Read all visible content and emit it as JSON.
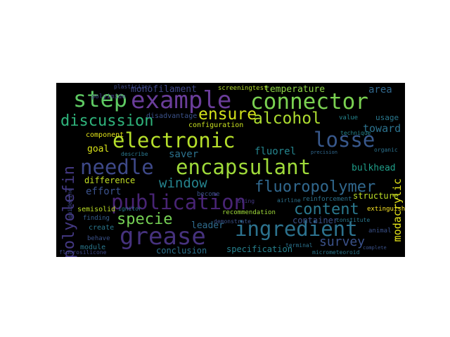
{
  "colors": {
    "background": "#000000",
    "page": "#ffffff",
    "palette": [
      "#440154",
      "#3b528b",
      "#21918c",
      "#5ec962",
      "#fde725"
    ]
  },
  "wordcloud": {
    "words": [
      {
        "text": "step",
        "color": "#5ec962"
      },
      {
        "text": "example",
        "color": "#6a3d9a"
      },
      {
        "text": "connector",
        "color": "#7ad151"
      },
      {
        "text": "discussion",
        "color": "#2fb47c"
      },
      {
        "text": "ensure",
        "color": "#d2e21b"
      },
      {
        "text": "alcohol",
        "color": "#addc30"
      },
      {
        "text": "electronic",
        "color": "#b5de2b"
      },
      {
        "text": "losse",
        "color": "#38588c"
      },
      {
        "text": "needle",
        "color": "#3e4989"
      },
      {
        "text": "encapsulant",
        "color": "#9fda3a"
      },
      {
        "text": "publication",
        "color": "#482475"
      },
      {
        "text": "window",
        "color": "#25848e"
      },
      {
        "text": "fluoropolymer",
        "color": "#31688e"
      },
      {
        "text": "polyolefin",
        "color": "#443983"
      },
      {
        "text": "content",
        "color": "#2a788e"
      },
      {
        "text": "ingredient",
        "color": "#2c728e"
      },
      {
        "text": "grease",
        "color": "#46327e"
      },
      {
        "text": "specie",
        "color": "#75d054"
      },
      {
        "text": "survey",
        "color": "#3b528b"
      },
      {
        "text": "modacrylic",
        "color": "#e5e419"
      },
      {
        "text": "monofilament",
        "color": "#3f4788"
      },
      {
        "text": "temperature",
        "color": "#8ed645"
      },
      {
        "text": "area",
        "color": "#31688e"
      },
      {
        "text": "toward",
        "color": "#2c728e"
      },
      {
        "text": "goal",
        "color": "#d8e219"
      },
      {
        "text": "saver",
        "color": "#2c728e"
      },
      {
        "text": "fluorel",
        "color": "#25858e"
      },
      {
        "text": "bulkhead",
        "color": "#1f9e89"
      },
      {
        "text": "difference",
        "color": "#c2df23"
      },
      {
        "text": "effort",
        "color": "#3b528b"
      },
      {
        "text": "structure",
        "color": "#bddf26"
      },
      {
        "text": "container",
        "color": "#3b528b"
      },
      {
        "text": "leader",
        "color": "#2f6c8e"
      },
      {
        "text": "specification",
        "color": "#26818e"
      },
      {
        "text": "conclusion",
        "color": "#2c728e"
      },
      {
        "text": "configuration",
        "color": "#c8e020"
      },
      {
        "text": "component",
        "color": "#e2e418"
      },
      {
        "text": "create",
        "color": "#2a788e"
      },
      {
        "text": "module",
        "color": "#2a788e"
      },
      {
        "text": "finding",
        "color": "#355f8d"
      },
      {
        "text": "behave",
        "color": "#3b528b"
      },
      {
        "text": "semisolid",
        "color": "#bddf26"
      },
      {
        "text": "disadvantage",
        "color": "#3b528b"
      },
      {
        "text": "polyimide",
        "color": "#433e85"
      },
      {
        "text": "plasticizer",
        "color": "#3e4a89"
      },
      {
        "text": "screeningtest",
        "color": "#b5de2b"
      },
      {
        "text": "usage",
        "color": "#2a788e"
      },
      {
        "text": "technique",
        "color": "#25858e"
      },
      {
        "text": "extinguishant",
        "color": "#fde725"
      },
      {
        "text": "reinforcement",
        "color": "#2c728e"
      },
      {
        "text": "recommendation",
        "color": "#a0da39"
      },
      {
        "text": "become",
        "color": "#3b528b"
      },
      {
        "text": "bring",
        "color": "#443983"
      },
      {
        "text": "animal",
        "color": "#3b528b"
      },
      {
        "text": "micrometeoroid",
        "color": "#2a788e"
      },
      {
        "text": "fluorosilicone",
        "color": "#3e4989"
      },
      {
        "text": "airline",
        "color": "#2c728e"
      },
      {
        "text": "value",
        "color": "#25858e"
      },
      {
        "text": "organic",
        "color": "#2c728e"
      },
      {
        "text": "constitute",
        "color": "#2a788e"
      },
      {
        "text": "guideline",
        "color": "#3e4989"
      },
      {
        "text": "describe",
        "color": "#2a788e"
      },
      {
        "text": "demonstrate",
        "color": "#3b528b"
      },
      {
        "text": "terminal",
        "color": "#2c728e"
      },
      {
        "text": "complete",
        "color": "#3b528b"
      },
      {
        "text": "precision",
        "color": "#31688e"
      },
      {
        "text": "ignitor",
        "color": "#2a788e"
      }
    ]
  }
}
